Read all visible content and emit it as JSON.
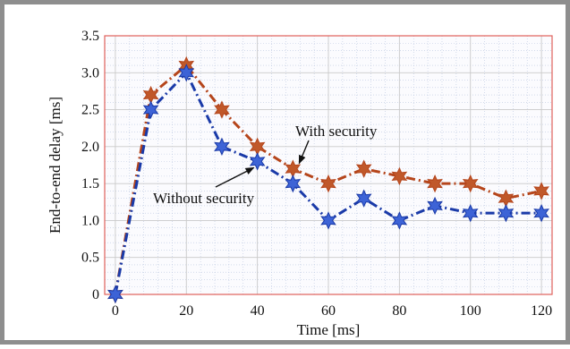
{
  "chart_data": {
    "type": "line",
    "title": "",
    "xlabel": "Time [ms]",
    "ylabel": "End-to-end delay [ms]",
    "xlim": [
      -3,
      123
    ],
    "ylim": [
      0,
      3.5
    ],
    "x_ticks": [
      0,
      20,
      40,
      60,
      80,
      100,
      120
    ],
    "y_ticks": [
      0,
      0.5,
      1.0,
      1.5,
      2.0,
      2.5,
      3.0,
      3.5
    ],
    "y_tick_labels": [
      "0",
      "0.5",
      "1.0",
      "1.5",
      "2.0",
      "2.5",
      "3.0",
      "3.5"
    ],
    "grid": true,
    "legend": "none",
    "series": [
      {
        "name": "With security",
        "color": "#b5451b",
        "marker_color": "#c0582a",
        "line_style": "dash-dot",
        "marker": "star",
        "x": [
          0,
          10,
          20,
          30,
          40,
          50,
          60,
          70,
          80,
          90,
          100,
          110,
          120
        ],
        "y": [
          0,
          2.7,
          3.1,
          2.5,
          2.0,
          1.7,
          1.5,
          1.7,
          1.6,
          1.5,
          1.5,
          1.3,
          1.4
        ]
      },
      {
        "name": "Without security",
        "color": "#1a3aa8",
        "marker_color": "#3d63d6",
        "line_style": "dash-dot",
        "marker": "star",
        "x": [
          0,
          10,
          20,
          30,
          40,
          50,
          60,
          70,
          80,
          90,
          100,
          110,
          120
        ],
        "y": [
          0,
          2.5,
          3.0,
          2.0,
          1.8,
          1.5,
          1.0,
          1.3,
          1.0,
          1.2,
          1.1,
          1.1,
          1.1
        ]
      }
    ],
    "annotations": [
      {
        "text": "With security",
        "target_series": 0,
        "point_x": 50,
        "point_y": 1.7
      },
      {
        "text": "Without security",
        "target_series": 1,
        "point_x": 40,
        "point_y": 1.8
      }
    ]
  }
}
